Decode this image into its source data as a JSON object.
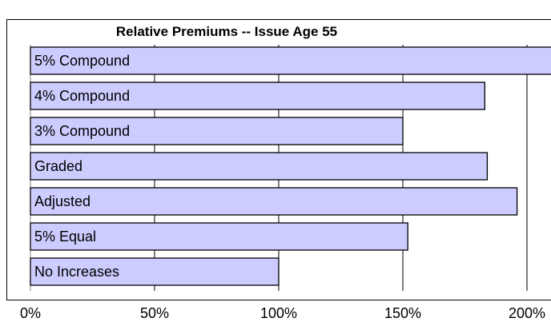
{
  "chart_data": {
    "type": "bar",
    "orientation": "horizontal",
    "title": "Relative Premiums -- Issue Age 55",
    "xlabel": "",
    "ylabel": "",
    "categories": [
      "5% Compound",
      "4% Compound",
      "3% Compound",
      "Graded",
      "Adjusted",
      "5% Equal",
      "No Increases"
    ],
    "values": [
      210,
      183,
      150,
      184,
      196,
      152,
      100
    ],
    "xlim": [
      0,
      210
    ],
    "xticks": [
      0,
      50,
      100,
      150,
      200
    ],
    "xtick_labels": [
      "0%",
      "50%",
      "100%",
      "150%",
      "200%"
    ],
    "grid": "vertical",
    "bar_color": "#ccccff",
    "bar_edge_color": "#000000"
  }
}
